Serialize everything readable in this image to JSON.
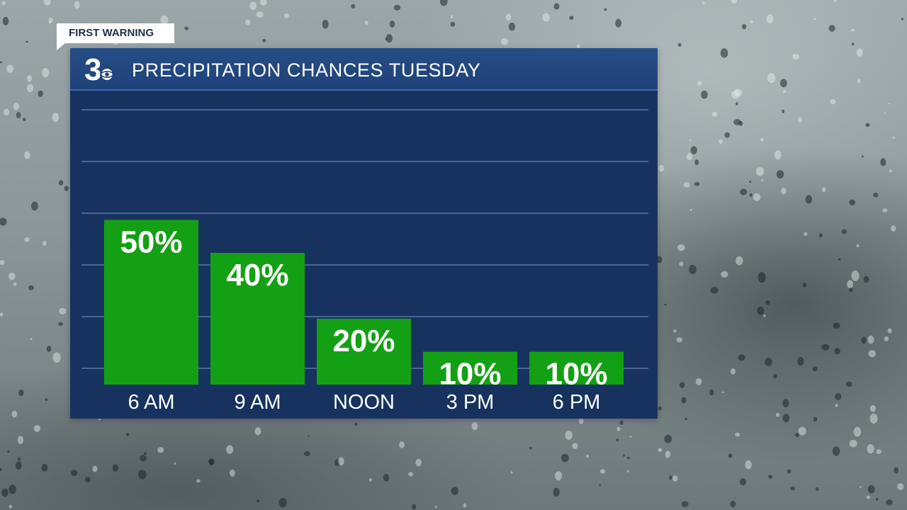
{
  "banner": {
    "label": "FIRST WARNING"
  },
  "logo": {
    "text": "3"
  },
  "colors": {
    "panel": "#17325f",
    "header": "#234a82",
    "bar": "#14a014",
    "grid": "#4a6590",
    "text": "#ffffff"
  },
  "chart_data": {
    "type": "bar",
    "title": "PRECIPITATION CHANCES TUESDAY",
    "categories": [
      "6 AM",
      "9 AM",
      "NOON",
      "3 PM",
      "6 PM"
    ],
    "values": [
      50,
      40,
      20,
      10,
      10
    ],
    "value_labels": [
      "50%",
      "40%",
      "20%",
      "10%",
      "10%"
    ],
    "ylim": [
      0,
      100
    ],
    "grid": true,
    "legend": "none"
  }
}
